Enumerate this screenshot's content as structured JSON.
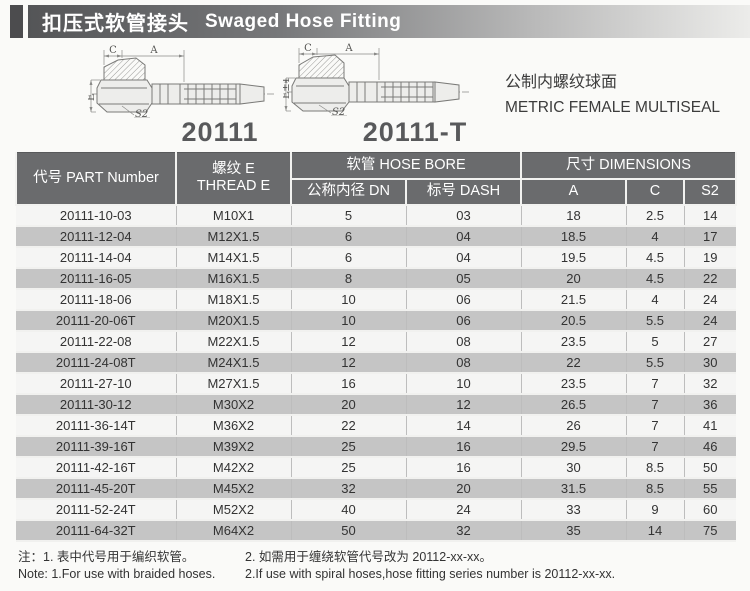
{
  "header": {
    "title_zh": "扣压式软管接头",
    "title_en": "Swaged Hose Fitting"
  },
  "subtitle": {
    "zh": "公制内螺纹球面",
    "en": "METRIC FEMALE MULTISEAL"
  },
  "diagrams": [
    {
      "caption": "20111",
      "dim_c": "C",
      "dim_a": "A",
      "dim_e": "E",
      "dim_s2": "S2"
    },
    {
      "caption": "20111-T",
      "dim_c": "C",
      "dim_a": "A",
      "dim_e": "E±1",
      "dim_s2": "S2"
    }
  ],
  "table": {
    "headers": {
      "part_number": "代号 PART Number",
      "thread_zh": "螺纹 E",
      "thread_en": "THREAD E",
      "hose_bore": "软管 HOSE BORE",
      "dn": "公称内径 DN",
      "dash": "标号 DASH",
      "dimensions": "尺寸 DIMENSIONS",
      "a": "A",
      "c": "C",
      "s2": "S2"
    },
    "rows": [
      [
        "20111-10-03",
        "M10X1",
        "5",
        "03",
        "18",
        "2.5",
        "14"
      ],
      [
        "20111-12-04",
        "M12X1.5",
        "6",
        "04",
        "18.5",
        "4",
        "17"
      ],
      [
        "20111-14-04",
        "M14X1.5",
        "6",
        "04",
        "19.5",
        "4.5",
        "19"
      ],
      [
        "20111-16-05",
        "M16X1.5",
        "8",
        "05",
        "20",
        "4.5",
        "22"
      ],
      [
        "20111-18-06",
        "M18X1.5",
        "10",
        "06",
        "21.5",
        "4",
        "24"
      ],
      [
        "20111-20-06T",
        "M20X1.5",
        "10",
        "06",
        "20.5",
        "5.5",
        "24"
      ],
      [
        "20111-22-08",
        "M22X1.5",
        "12",
        "08",
        "23.5",
        "5",
        "27"
      ],
      [
        "20111-24-08T",
        "M24X1.5",
        "12",
        "08",
        "22",
        "5.5",
        "30"
      ],
      [
        "20111-27-10",
        "M27X1.5",
        "16",
        "10",
        "23.5",
        "7",
        "32"
      ],
      [
        "20111-30-12",
        "M30X2",
        "20",
        "12",
        "26.5",
        "7",
        "36"
      ],
      [
        "20111-36-14T",
        "M36X2",
        "22",
        "14",
        "26",
        "7",
        "41"
      ],
      [
        "20111-39-16T",
        "M39X2",
        "25",
        "16",
        "29.5",
        "7",
        "46"
      ],
      [
        "20111-42-16T",
        "M42X2",
        "25",
        "16",
        "30",
        "8.5",
        "50"
      ],
      [
        "20111-45-20T",
        "M45X2",
        "32",
        "20",
        "31.5",
        "8.5",
        "55"
      ],
      [
        "20111-52-24T",
        "M52X2",
        "40",
        "24",
        "33",
        "9",
        "60"
      ],
      [
        "20111-64-32T",
        "M64X2",
        "50",
        "32",
        "35",
        "14",
        "75"
      ]
    ]
  },
  "notes": {
    "zh_1": "注：1. 表中代号用于编织软管。",
    "en_1": "Note: 1.For use with braided hoses.",
    "zh_2": "2. 如需用于缠绕软管代号改为 20112-xx-xx。",
    "en_2": "2.If use with spiral hoses,hose fitting series number is 20112-xx-xx."
  },
  "colors": {
    "title_bar_dark": "#545557",
    "title_bar_light": "#ececea",
    "accent_block": "#4c4c4e",
    "table_header_bg": "#6a6b6d",
    "row_light": "#f5f5f4",
    "row_gray": "#c5c5c5",
    "caption_text": "#58595b"
  }
}
